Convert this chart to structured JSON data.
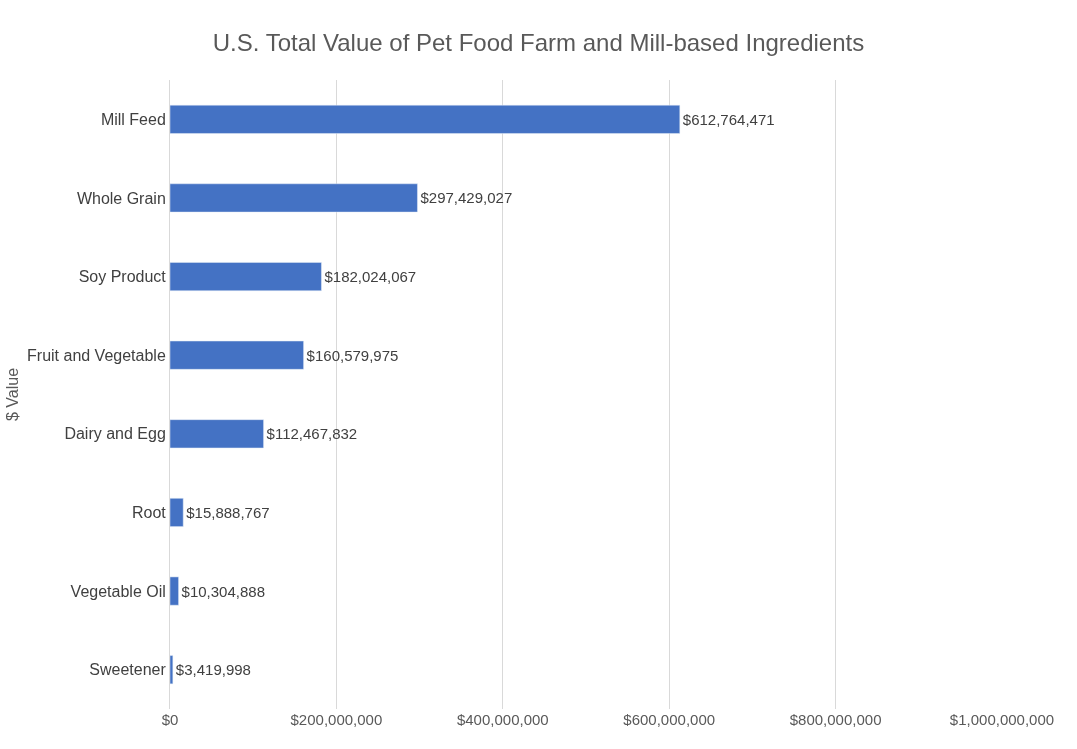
{
  "chart_data": {
    "type": "bar",
    "orientation": "horizontal",
    "title": "U.S. Total Value of Pet Food Farm and Mill-based Ingredients",
    "ylabel": "$ Value",
    "categories": [
      "Mill Feed",
      "Whole Grain",
      "Soy Product",
      "Fruit and Vegetable",
      "Dairy and Egg",
      "Root",
      "Vegetable Oil",
      "Sweetener"
    ],
    "values": [
      612764471,
      297429027,
      182024067,
      160579975,
      112467832,
      15888767,
      10304888,
      3419998
    ],
    "value_labels": [
      "$612,764,471",
      "$297,429,027",
      "$182,024,067",
      "$160,579,975",
      "$112,467,832",
      "$15,888,767",
      "$10,304,888",
      "$3,419,998"
    ],
    "color": "#4472c4",
    "xlim": [
      0,
      1000000000
    ],
    "xticks": [
      {
        "value": 0,
        "label": "$0"
      },
      {
        "value": 200000000,
        "label": "$200,000,000"
      },
      {
        "value": 400000000,
        "label": "$400,000,000"
      },
      {
        "value": 600000000,
        "label": "$600,000,000"
      },
      {
        "value": 800000000,
        "label": "$800,000,000"
      },
      {
        "value": 1000000000,
        "label": "$1,000,000,000"
      }
    ],
    "grid": "x"
  }
}
